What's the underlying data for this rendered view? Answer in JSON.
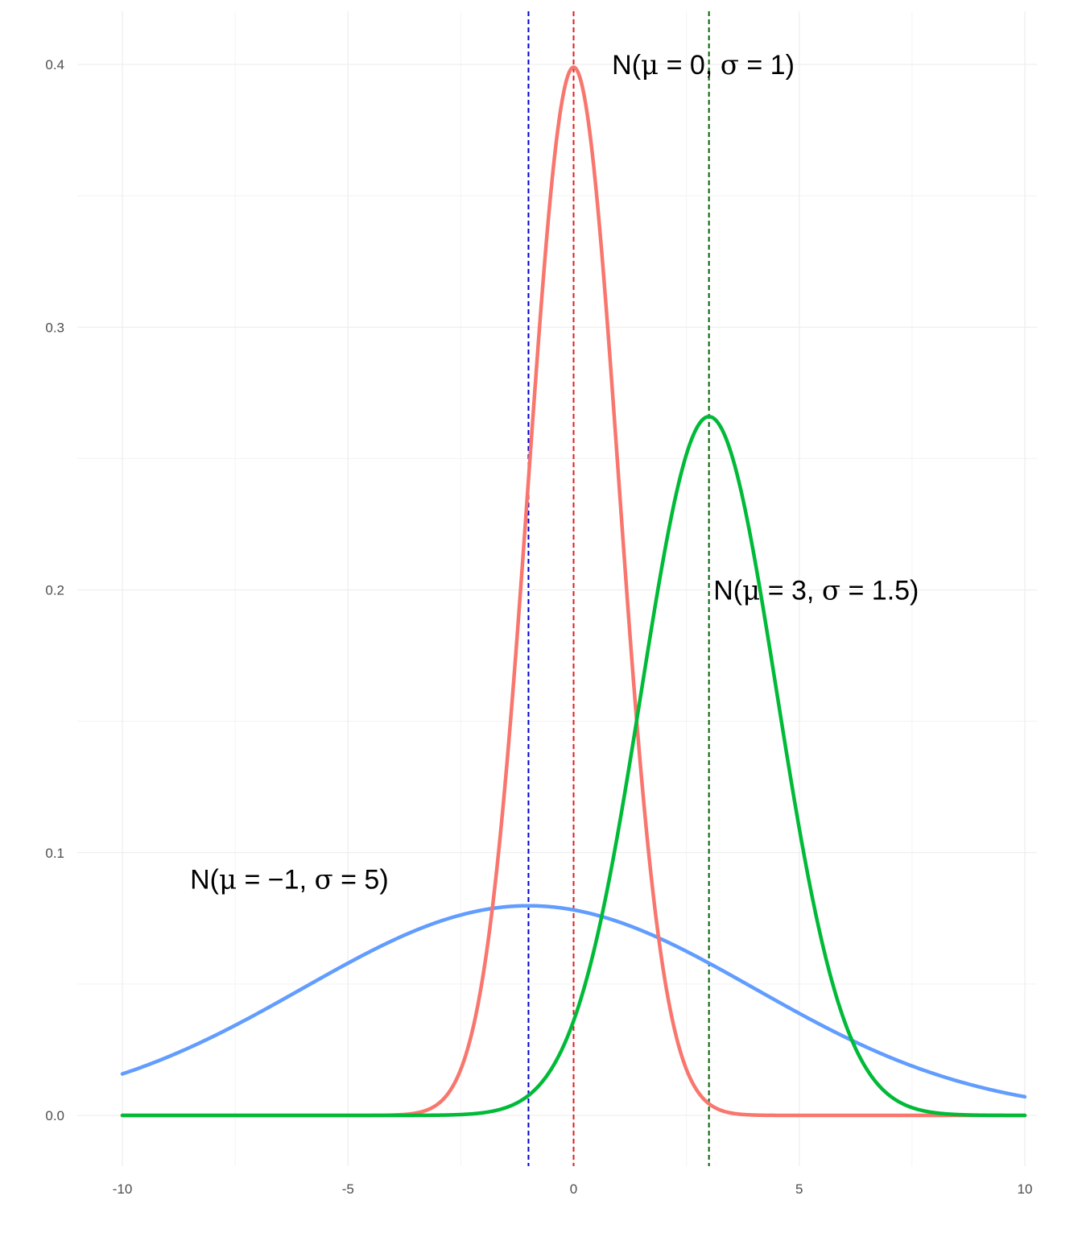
{
  "chart_data": {
    "type": "line",
    "title": "",
    "xlabel": "",
    "ylabel": "",
    "xlim": [
      -10,
      10
    ],
    "ylim": [
      0,
      0.4
    ],
    "x_ticks": [
      {
        "value": -10,
        "label": "-10"
      },
      {
        "value": -5,
        "label": "-5"
      },
      {
        "value": 0,
        "label": "0"
      },
      {
        "value": 5,
        "label": "5"
      },
      {
        "value": 10,
        "label": "10"
      }
    ],
    "y_ticks": [
      {
        "value": 0,
        "label": "0.0"
      },
      {
        "value": 0.1,
        "label": "0.1"
      },
      {
        "value": 0.2,
        "label": "0.2"
      },
      {
        "value": 0.3,
        "label": "0.3"
      },
      {
        "value": 0.4,
        "label": "0.4"
      }
    ],
    "grid": true,
    "legend": "none",
    "series": [
      {
        "name": "N(μ = −1, σ = 5)",
        "distribution": "normal",
        "mean": -1,
        "sd": 5,
        "color": "#619CFF",
        "x": [
          -10,
          -9,
          -8,
          -7,
          -6,
          -5,
          -4,
          -3,
          -2,
          -1,
          0,
          1,
          2,
          3,
          4,
          5,
          6,
          7,
          8,
          9,
          10
        ],
        "y": [
          0.0158,
          0.0224,
          0.0299,
          0.0388,
          0.0484,
          0.0579,
          0.0666,
          0.0737,
          0.0782,
          0.0798,
          0.0782,
          0.0737,
          0.0666,
          0.0579,
          0.0484,
          0.0388,
          0.0299,
          0.0224,
          0.0158,
          0.0108,
          0.0071
        ]
      },
      {
        "name": "N(μ = 0, σ = 1)",
        "distribution": "normal",
        "mean": 0,
        "sd": 1,
        "color": "#F8766D",
        "x": [
          -4,
          -3,
          -2.5,
          -2,
          -1.5,
          -1,
          -0.5,
          0,
          0.5,
          1,
          1.5,
          2,
          2.5,
          3,
          4
        ],
        "y": [
          0.0001,
          0.0044,
          0.0175,
          0.054,
          0.1295,
          0.242,
          0.3521,
          0.3989,
          0.3521,
          0.242,
          0.1295,
          0.054,
          0.0175,
          0.0044,
          0.0001
        ]
      },
      {
        "name": "N(μ = 3, σ = 1.5)",
        "distribution": "normal",
        "mean": 3,
        "sd": 1.5,
        "color": "#00BA38",
        "x": [
          -4,
          -2,
          -1,
          0,
          1,
          2,
          3,
          4,
          5,
          6,
          7,
          8,
          9
        ],
        "y": [
          0.0,
          0.0011,
          0.0076,
          0.036,
          0.1093,
          0.213,
          0.266,
          0.213,
          0.1093,
          0.036,
          0.0076,
          0.0011,
          0.0001
        ]
      }
    ],
    "vlines": [
      {
        "x": -1,
        "color": "#0000CD",
        "style": "dashed"
      },
      {
        "x": 0,
        "color": "#E31A1C",
        "style": "dashed"
      },
      {
        "x": 3,
        "color": "#006400",
        "style": "dashed"
      }
    ],
    "annotations": [
      {
        "text": "N(μ = 0, σ = 1)",
        "x": 0.85,
        "y": 0.4
      },
      {
        "text": "N(μ = 3, σ = 1.5)",
        "x": 3.1,
        "y": 0.2
      },
      {
        "text": "N(μ = −1, σ = 5)",
        "x": -8.5,
        "y": 0.09
      }
    ]
  }
}
